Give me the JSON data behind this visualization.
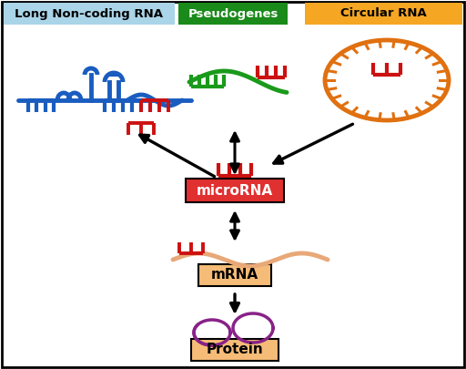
{
  "bg_color": "#ffffff",
  "border_color": "#000000",
  "title_lncrna": "Long Non-coding RNA",
  "title_pseudo": "Pseudogenes",
  "title_circrna": "Circular RNA",
  "label_microrna": "microRNA",
  "label_mrna": "mRNA",
  "label_protein": "Protein",
  "lncrna_bg": "#aad4e8",
  "pseudo_bg": "#1a8a1a",
  "circrna_bg": "#f5a623",
  "microrna_bg": "#e03030",
  "mrna_bg": "#f5bc78",
  "protein_bg": "#f5bc78",
  "blue": "#1a5cbf",
  "green": "#1a9a1a",
  "orange": "#e07010",
  "red": "#cc1111",
  "purple": "#882288",
  "salmon": "#e8a878",
  "black": "#000000",
  "white": "#ffffff"
}
